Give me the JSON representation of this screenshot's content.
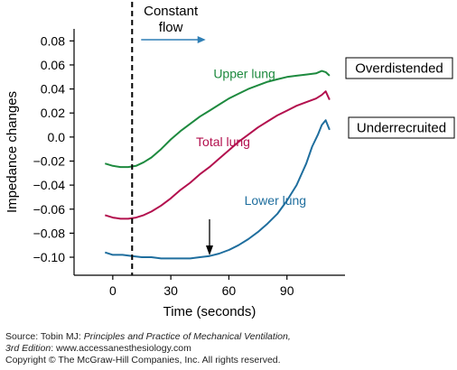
{
  "chart_data": {
    "type": "line",
    "xlabel": "Time (seconds)",
    "ylabel": "Impedance changes",
    "xlim": [
      -20,
      120
    ],
    "ylim": [
      -0.115,
      0.09
    ],
    "xticks": [
      0,
      30,
      60,
      90
    ],
    "xtick_labels": [
      "0",
      "30",
      "60",
      "90"
    ],
    "yticks": [
      0.08,
      0.06,
      0.04,
      0.02,
      0.0,
      -0.02,
      -0.04,
      -0.06,
      -0.08,
      -0.1
    ],
    "ytick_labels": [
      "0.08",
      "0.06",
      "0.04",
      "0.02",
      "0.0",
      "−0.02",
      "−0.04",
      "−0.06",
      "−0.08",
      "−0.10"
    ],
    "grid": false,
    "series": [
      {
        "name": "Upper lung",
        "color": "#1e8a3f",
        "x": [
          -4,
          0,
          4,
          8,
          12,
          16,
          20,
          25,
          30,
          35,
          40,
          45,
          50,
          55,
          60,
          65,
          70,
          75,
          80,
          85,
          90,
          95,
          100,
          105,
          108,
          110,
          112
        ],
        "y": [
          -0.022,
          -0.024,
          -0.025,
          -0.025,
          -0.024,
          -0.021,
          -0.017,
          -0.01,
          -0.002,
          0.005,
          0.011,
          0.017,
          0.022,
          0.027,
          0.032,
          0.036,
          0.04,
          0.043,
          0.046,
          0.048,
          0.05,
          0.051,
          0.052,
          0.053,
          0.055,
          0.054,
          0.051
        ]
      },
      {
        "name": "Total lung",
        "color": "#b3104e",
        "x": [
          -4,
          0,
          4,
          8,
          12,
          16,
          20,
          25,
          30,
          35,
          40,
          45,
          50,
          55,
          60,
          65,
          70,
          75,
          80,
          85,
          90,
          95,
          100,
          105,
          108,
          110,
          112
        ],
        "y": [
          -0.065,
          -0.067,
          -0.068,
          -0.068,
          -0.067,
          -0.065,
          -0.062,
          -0.057,
          -0.051,
          -0.044,
          -0.038,
          -0.031,
          -0.025,
          -0.018,
          -0.011,
          -0.004,
          0.002,
          0.008,
          0.013,
          0.018,
          0.022,
          0.026,
          0.029,
          0.032,
          0.035,
          0.038,
          0.031
        ]
      },
      {
        "name": "Lower lung",
        "color": "#1f6e9e",
        "x": [
          -4,
          0,
          5,
          10,
          15,
          20,
          25,
          30,
          35,
          40,
          45,
          50,
          55,
          60,
          65,
          70,
          75,
          80,
          85,
          90,
          95,
          100,
          103,
          106,
          108,
          110,
          112
        ],
        "y": [
          -0.096,
          -0.098,
          -0.098,
          -0.099,
          -0.1,
          -0.1,
          -0.101,
          -0.101,
          -0.101,
          -0.101,
          -0.1,
          -0.099,
          -0.097,
          -0.094,
          -0.09,
          -0.085,
          -0.079,
          -0.072,
          -0.064,
          -0.053,
          -0.04,
          -0.022,
          -0.008,
          0.002,
          0.01,
          0.014,
          0.006
        ]
      }
    ],
    "annotations": {
      "constant_flow": "Constant\nflow",
      "overdistended": "Overdistended",
      "underrecruited": "Underrecruited",
      "vertical_line_x": 10,
      "arrow_x": 50
    },
    "colors": {
      "dashed_line": "#000000",
      "flow_arrow": "#2f7fb5"
    }
  },
  "source": {
    "line1_prefix": "Source: Tobin MJ: ",
    "line1_italic": "Principles and Practice of Mechanical Ventilation,",
    "line2_italic": "3rd Edition",
    "line2_rest": ": www.accessanesthesiology.com",
    "line3": "Copyright © The McGraw-Hill Companies, Inc. All rights reserved."
  }
}
